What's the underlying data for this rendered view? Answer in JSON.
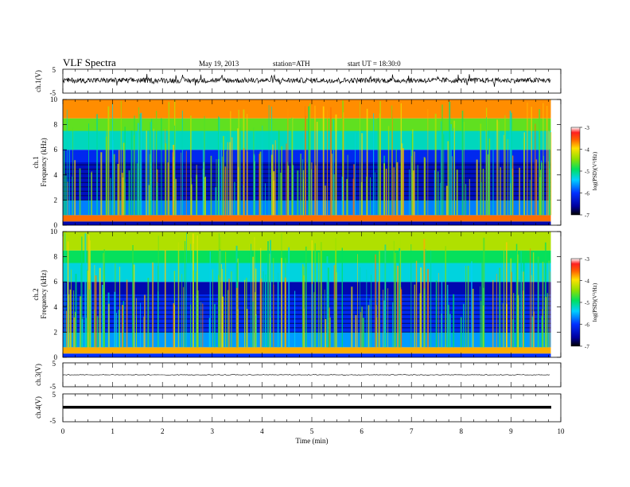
{
  "header": {
    "title": "VLF  Spectra",
    "date": "May 19, 2013",
    "station": "station=ATH",
    "start": "start  UT  =     18:30:0"
  },
  "chart_data": {
    "type": "heatmap",
    "xlabel": "Time  (min)",
    "xlim": [
      0,
      10
    ],
    "x_ticks": [
      "0",
      "1",
      "2",
      "3",
      "4",
      "5",
      "6",
      "7",
      "8",
      "9",
      "10"
    ],
    "data_end_min": 9.8,
    "panels": [
      {
        "kind": "waveform",
        "ylabel": "ch.1(V)",
        "ylim": [
          -5,
          5
        ],
        "y_ticks": [
          "5",
          "-5"
        ],
        "amplitude": "noisy, approx -1.5 to 1.5 V with spikes to about 2.2 V"
      },
      {
        "kind": "spectrogram",
        "ylabel": [
          "ch.1",
          "Frequency  (kHz)"
        ],
        "ylim": [
          0,
          10
        ],
        "y_ticks": [
          "0",
          "2",
          "4",
          "6",
          "8",
          "10"
        ],
        "colorbar": {
          "label": "log(PSD)(V²/Hz)",
          "range": [
            -7,
            -3
          ],
          "ticks": [
            "-3",
            "-4",
            "-5",
            "-6",
            "-7"
          ]
        },
        "bands_khz": [
          {
            "from": 0.0,
            "to": 0.3,
            "level": -6.5
          },
          {
            "from": 0.3,
            "to": 0.8,
            "level": -3.6
          },
          {
            "from": 0.8,
            "to": 2.0,
            "level": -5.7
          },
          {
            "from": 2.0,
            "to": 5.0,
            "level": -6.4
          },
          {
            "from": 5.0,
            "to": 6.0,
            "level": -6.1
          },
          {
            "from": 6.0,
            "to": 7.5,
            "level": -5.2
          },
          {
            "from": 7.5,
            "to": 8.5,
            "level": -4.6
          },
          {
            "from": 8.5,
            "to": 10.0,
            "level": -3.7
          }
        ]
      },
      {
        "kind": "spectrogram",
        "ylabel": [
          "ch.2",
          "Frequency  (kHz)"
        ],
        "ylim": [
          0,
          10
        ],
        "y_ticks": [
          "0",
          "2",
          "4",
          "6",
          "8",
          "10"
        ],
        "colorbar": {
          "label": "log(PSD)(V²/Hz)",
          "range": [
            -7,
            -3
          ],
          "ticks": [
            "-3",
            "-4",
            "-5",
            "-6",
            "-7"
          ]
        },
        "bands_khz": [
          {
            "from": 0.0,
            "to": 0.3,
            "level": -6.0
          },
          {
            "from": 0.3,
            "to": 0.8,
            "level": -3.8
          },
          {
            "from": 0.8,
            "to": 2.0,
            "level": -5.6
          },
          {
            "from": 2.0,
            "to": 5.0,
            "level": -6.1
          },
          {
            "from": 5.0,
            "to": 6.0,
            "level": -6.5
          },
          {
            "from": 6.0,
            "to": 7.5,
            "level": -5.3
          },
          {
            "from": 7.5,
            "to": 8.5,
            "level": -4.9
          },
          {
            "from": 8.5,
            "to": 10.0,
            "level": -4.3
          }
        ]
      },
      {
        "kind": "waveform",
        "ylabel": "ch.3(V)",
        "ylim": [
          -5,
          5
        ],
        "y_ticks": [
          "5",
          "-5"
        ],
        "amplitude": "flat, near 0 V"
      },
      {
        "kind": "waveform",
        "ylabel": "ch.4(V)",
        "ylim": [
          -5,
          5
        ],
        "y_ticks": [
          "5",
          "-5"
        ],
        "amplitude": "thick flat trace near 0 V"
      }
    ]
  }
}
